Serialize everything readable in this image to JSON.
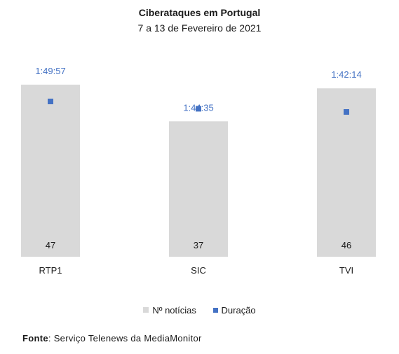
{
  "chart_data": {
    "type": "bar",
    "title": "Ciberataques em Portugal",
    "subtitle": "7 a 13 de Fevereiro de 2021",
    "categories": [
      "RTP1",
      "SIC",
      "TVI"
    ],
    "series": [
      {
        "name": "Nº notícias",
        "type": "bar",
        "values": [
          47,
          37,
          46
        ],
        "color": "#d9d9d9"
      },
      {
        "name": "Duração",
        "type": "scatter",
        "values": [
          "1:49:57",
          "1:44:35",
          "1:42:14"
        ],
        "color": "#4472c4"
      }
    ],
    "duration_labels": [
      "1:49:57",
      "1:44:35",
      "1:42:14"
    ],
    "legend": "bottom",
    "grid": false
  },
  "source": {
    "label": "Fonte",
    "text": ": Serviço Telenews da MediaMonitor"
  }
}
